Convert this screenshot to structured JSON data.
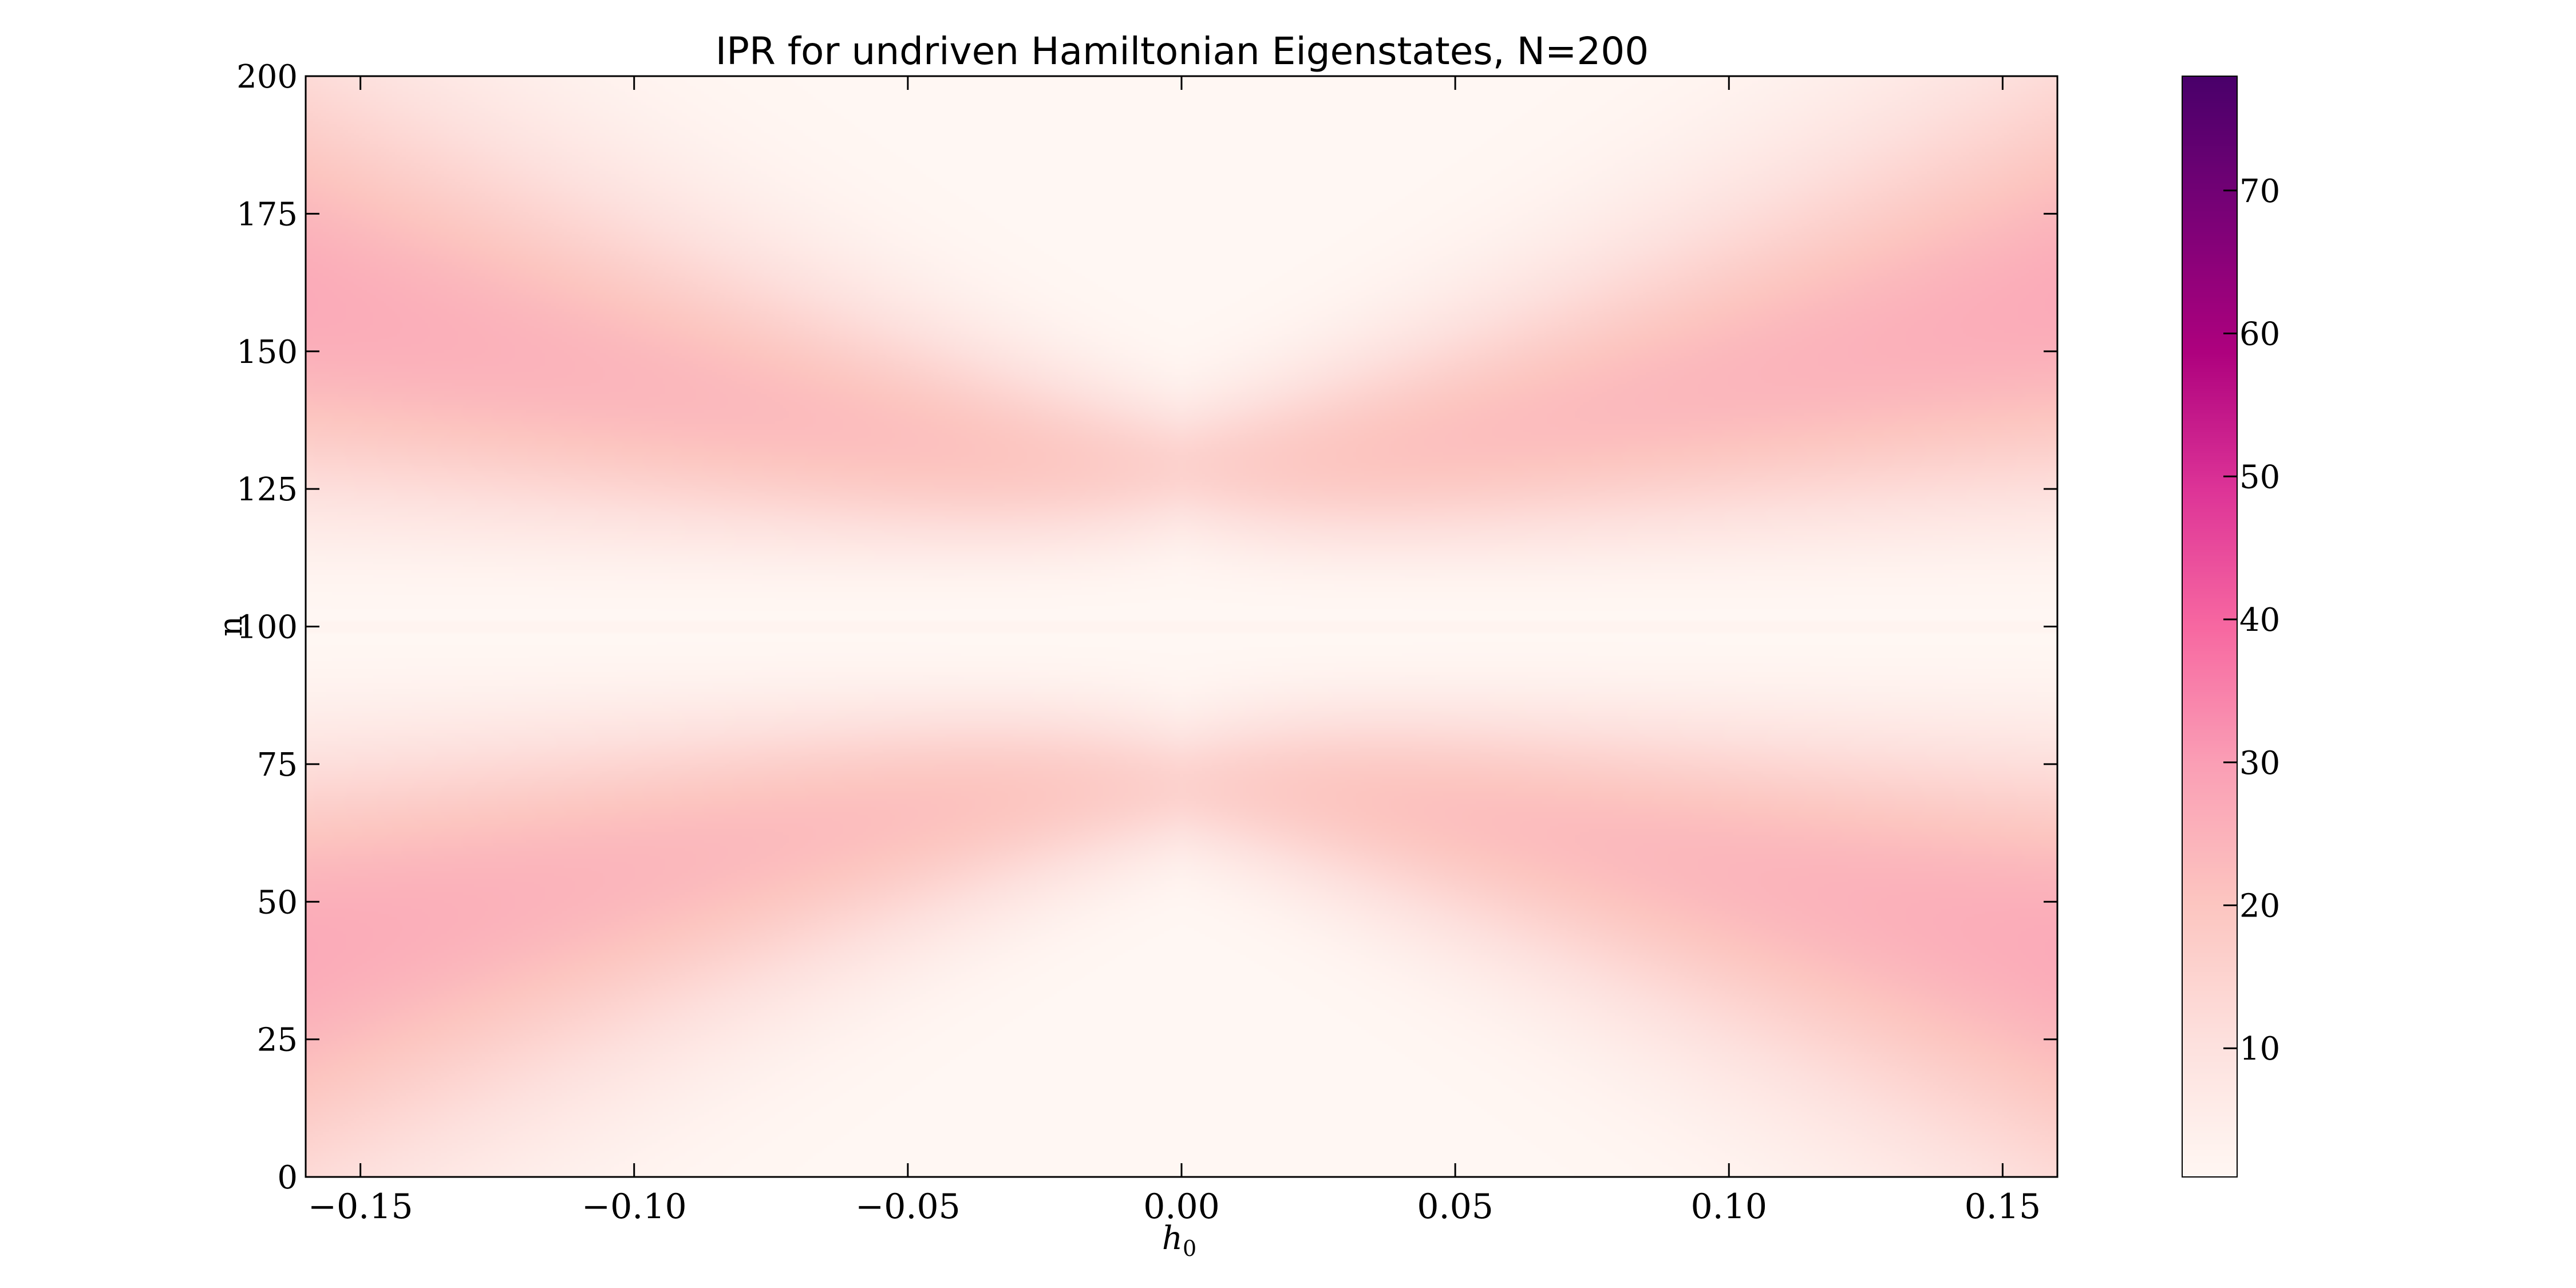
{
  "chart_data": {
    "type": "heatmap",
    "title": "IPR for undriven Hamiltonian Eigenstates, N=200",
    "xlabel_base": "h",
    "xlabel_sub": "0",
    "ylabel": "n",
    "xlim": [
      -0.16,
      0.16
    ],
    "ylim": [
      0,
      200
    ],
    "xticks": [
      -0.15,
      -0.1,
      -0.05,
      0.0,
      0.05,
      0.1,
      0.15
    ],
    "xtick_labels": [
      "−0.15",
      "−0.10",
      "−0.05",
      "0.00",
      "0.05",
      "0.10",
      "0.15"
    ],
    "yticks": [
      0,
      25,
      50,
      75,
      100,
      125,
      150,
      175,
      200
    ],
    "ytick_labels": [
      "0",
      "25",
      "50",
      "75",
      "100",
      "125",
      "150",
      "175",
      "200"
    ],
    "colorbar": {
      "range": [
        1,
        78
      ],
      "ticks": [
        10,
        20,
        30,
        40,
        50,
        60,
        70
      ],
      "tick_labels": [
        "10",
        "20",
        "30",
        "40",
        "50",
        "60",
        "70"
      ]
    },
    "colormap": {
      "name": "RdPu",
      "stops": [
        "#fff7f3",
        "#fde0dd",
        "#fcc5c0",
        "#fa9fb5",
        "#f768a1",
        "#dd3497",
        "#ae017e",
        "#7a0177",
        "#49006a"
      ]
    },
    "grid": false
  }
}
